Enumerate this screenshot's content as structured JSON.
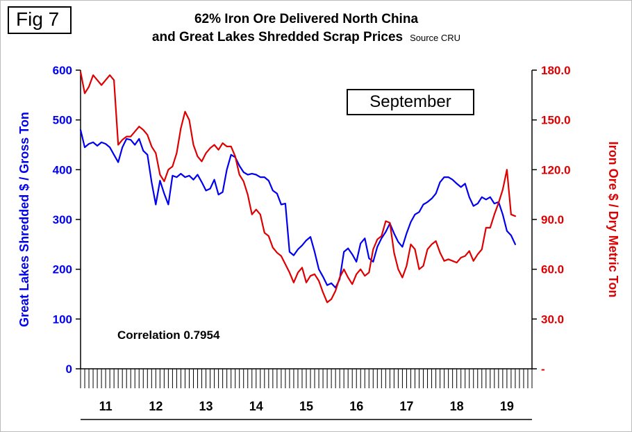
{
  "fig_label": "Fig 7",
  "title_line1": "62% Iron Ore Delivered North China",
  "title_line2": "and Great Lakes Shredded Scrap Prices",
  "source": "Source CRU",
  "annotations": {
    "month_label": "September",
    "correlation": "Correlation 0.7954"
  },
  "colors": {
    "scrap": "#0000EE",
    "ore": "#DE0000",
    "axis": "#000000"
  },
  "chart_data": {
    "type": "line",
    "title": "62% Iron Ore Delivered North China and Great Lakes Shredded Scrap Prices",
    "x_start": "2011-01",
    "x_end": "2019-09",
    "x_interval": "monthly",
    "grid": false,
    "legend": "none",
    "x_axis": {
      "year_labels": [
        "11",
        "12",
        "13",
        "14",
        "15",
        "16",
        "17",
        "18",
        "19"
      ],
      "x_range_years": [
        2011,
        2020
      ]
    },
    "left_axis": {
      "title": "Great Lakes Shredded $ / Gross Ton",
      "range": [
        0,
        600
      ],
      "ticks": [
        600,
        500,
        400,
        300,
        200,
        100,
        0
      ]
    },
    "right_axis": {
      "title": "Iron Ore $ / Dry Metric Ton",
      "range": [
        0,
        180
      ],
      "ticks": [
        {
          "v": 180,
          "label": "180.0"
        },
        {
          "v": 150,
          "label": "150.0"
        },
        {
          "v": 120,
          "label": "120.0"
        },
        {
          "v": 90,
          "label": "90.0"
        },
        {
          "v": 60,
          "label": "60.0"
        },
        {
          "v": 30,
          "label": "30.0"
        },
        {
          "v": 0,
          "label": "-"
        }
      ]
    },
    "series": [
      {
        "name": "Great Lakes Shredded Scrap",
        "axis": "left",
        "color": "#0000EE",
        "values": [
          480,
          445,
          452,
          455,
          448,
          455,
          452,
          445,
          430,
          415,
          445,
          462,
          460,
          450,
          462,
          438,
          430,
          375,
          330,
          378,
          352,
          330,
          388,
          385,
          392,
          385,
          388,
          380,
          390,
          375,
          358,
          362,
          380,
          350,
          355,
          400,
          430,
          425,
          408,
          395,
          390,
          392,
          390,
          385,
          385,
          378,
          358,
          352,
          330,
          332,
          235,
          228,
          240,
          248,
          258,
          265,
          235,
          200,
          185,
          168,
          172,
          163,
          180,
          235,
          242,
          230,
          215,
          252,
          262,
          222,
          215,
          245,
          262,
          275,
          292,
          272,
          255,
          245,
          272,
          295,
          310,
          315,
          330,
          335,
          342,
          352,
          375,
          385,
          385,
          380,
          372,
          365,
          372,
          345,
          327,
          332,
          345,
          340,
          345,
          332,
          335,
          310,
          277,
          268,
          250
        ]
      },
      {
        "name": "62% Iron Ore Delivered North China",
        "axis": "right",
        "color": "#DE0000",
        "values": [
          179,
          166,
          170,
          177,
          174,
          171,
          174,
          177,
          174,
          135,
          138,
          140,
          140,
          143,
          146,
          144,
          141,
          134,
          130,
          117,
          113,
          120,
          122,
          130,
          145,
          155,
          150,
          135,
          128,
          125,
          130,
          133,
          135,
          132,
          136,
          134,
          134,
          128,
          117,
          113,
          105,
          93,
          96,
          93,
          82,
          80,
          73,
          70,
          68,
          63,
          58,
          52,
          58,
          61,
          52,
          56,
          57,
          53,
          46,
          40,
          42,
          47,
          55,
          60,
          55,
          51,
          57,
          60,
          56,
          58,
          72,
          78,
          80,
          89,
          88,
          70,
          60,
          55,
          62,
          75,
          72,
          60,
          62,
          72,
          75,
          77,
          70,
          65,
          66,
          65,
          64,
          67,
          68,
          71,
          65,
          69,
          72,
          85,
          85,
          93,
          100,
          108,
          120,
          93,
          92
        ]
      }
    ]
  }
}
